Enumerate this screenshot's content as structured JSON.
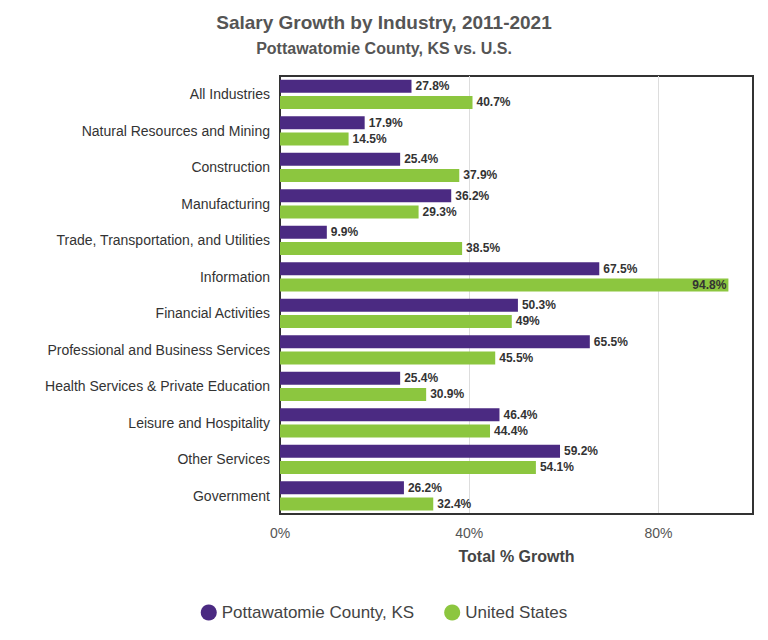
{
  "chart_data": {
    "type": "bar",
    "title": "Salary Growth by Industry, 2011-2021",
    "subtitle": "Pottawatomie County, KS vs. U.S.",
    "x_label": "Total % Growth",
    "orientation": "horizontal",
    "categories": [
      "All Industries",
      "Natural Resources and Mining",
      "Construction",
      "Manufacturing",
      "Trade, Transportation, and Utilities",
      "Information",
      "Financial Activities",
      "Professional and Business Services",
      "Health Services & Private Education",
      "Leisure and Hospitality",
      "Other Services",
      "Government"
    ],
    "series": [
      {
        "name": "Pottawatomie County, KS",
        "color": "#4b2a82",
        "values": [
          27.8,
          17.9,
          25.4,
          36.2,
          9.9,
          67.5,
          50.3,
          65.5,
          25.4,
          46.4,
          59.2,
          26.2
        ],
        "value_labels": [
          "27.8%",
          "17.9%",
          "25.4%",
          "36.2%",
          "9.9%",
          "67.5%",
          "50.3%",
          "65.5%",
          "25.4%",
          "46.4%",
          "59.2%",
          "26.2%"
        ]
      },
      {
        "name": "United States",
        "color": "#8cc63f",
        "values": [
          40.7,
          14.5,
          37.9,
          29.3,
          38.5,
          94.8,
          49,
          45.5,
          30.9,
          44.4,
          54.1,
          32.4
        ],
        "value_labels": [
          "40.7%",
          "14.5%",
          "37.9%",
          "29.3%",
          "38.5%",
          "94.8%",
          "49%",
          "45.5%",
          "30.9%",
          "44.4%",
          "54.1%",
          "32.4%"
        ]
      }
    ],
    "xlim": [
      0,
      100
    ],
    "xticks": [
      {
        "value": 0,
        "label": "0%"
      },
      {
        "value": 40,
        "label": "40%"
      },
      {
        "value": 80,
        "label": "80%"
      }
    ],
    "grid": true,
    "data_labels": true,
    "legend": "bottom"
  }
}
